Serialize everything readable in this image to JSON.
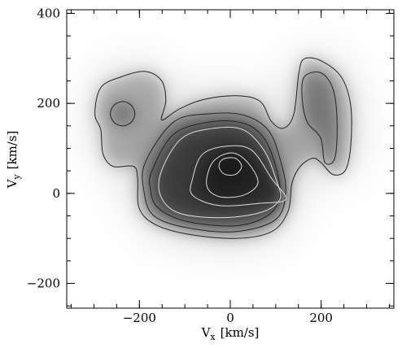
{
  "chart_data": {
    "type": "contour",
    "xlabel": {
      "main": "V",
      "sub": "x",
      "unit": "[km/s]"
    },
    "ylabel": {
      "main": "V",
      "sub": "y",
      "unit": "[km/s]"
    },
    "xlim": [
      -360,
      360
    ],
    "ylim": [
      -255,
      408
    ],
    "xticks": [
      {
        "value": -200,
        "label": "−200"
      },
      0,
      200
    ],
    "yticks": [
      {
        "value": -200,
        "label": "−200"
      },
      0,
      200,
      400
    ],
    "minor_step": 50,
    "contours": [
      {
        "color": "#222222",
        "x": [
          -285,
          -240,
          -187,
          -151,
          -142,
          -151,
          -115,
          -61,
          11,
          65,
          91,
          118,
          140,
          151,
          163,
          199,
          244,
          265,
          265,
          253,
          226,
          199,
          181,
          154,
          136,
          127,
          91,
          11,
          -97,
          -169,
          -201,
          -204,
          -213,
          -258,
          -280,
          -285,
          -298
        ],
        "y": [
          235,
          259,
          271,
          250,
          205,
          163,
          186,
          208,
          217,
          205,
          159,
          145,
          177,
          268,
          299,
          295,
          259,
          195,
          105,
          51,
          42,
          69,
          78,
          60,
          24,
          -40,
          -85,
          -100,
          -90,
          -67,
          -31,
          33,
          60,
          60,
          87,
          141,
          177
        ]
      },
      {
        "color": "#222222",
        "x": [
          -237,
          -218,
          -210,
          -218,
          -237,
          -256,
          -264,
          -256
        ],
        "y": [
          204,
          196,
          177,
          158,
          150,
          158,
          177,
          196
        ]
      },
      {
        "color": "#222222",
        "x": [
          163,
          199,
          226,
          235,
          230,
          208,
          199,
          169,
          158
        ],
        "y": [
          259,
          268,
          232,
          159,
          78,
          69,
          123,
          159,
          214
        ]
      },
      {
        "color": "#222222",
        "x": [
          -187,
          -124,
          -43,
          29,
          83,
          109,
          122,
          100,
          11,
          -97,
          -169,
          -190
        ],
        "y": [
          69,
          159,
          177,
          174,
          141,
          78,
          5,
          -58,
          -85,
          -76,
          -49,
          5
        ]
      },
      {
        "color": "#222222",
        "x": [
          -172,
          -124,
          -43,
          29,
          74,
          100,
          109,
          83,
          11,
          -97,
          -160,
          -176
        ],
        "y": [
          51,
          132,
          159,
          156,
          123,
          60,
          -4,
          -49,
          -72,
          -62,
          -31,
          11
        ]
      },
      {
        "color": "#dddddd",
        "x": [
          -151,
          -106,
          -34,
          29,
          74,
          100,
          109,
          65,
          -25,
          -115,
          -154
        ],
        "y": [
          51,
          123,
          145,
          141,
          96,
          33,
          -13,
          -43,
          -54,
          -43,
          -4
        ]
      },
      {
        "color": "#dddddd",
        "x": [
          -83,
          -61,
          -7,
          47,
          91,
          122,
          65,
          -25,
          -83
        ],
        "y": [
          33,
          87,
          105,
          96,
          33,
          -13,
          -22,
          -27,
          -4
        ]
      },
      {
        "color": "#dddddd",
        "x": [
          -52,
          -39,
          2,
          38,
          61,
          29,
          -25
        ],
        "y": [
          18,
          69,
          90,
          69,
          24,
          -4,
          -7
        ]
      },
      {
        "color": "#dddddd",
        "x": [
          -25,
          -16,
          11,
          25,
          11,
          -13
        ],
        "y": [
          60,
          76,
          78,
          60,
          42,
          43
        ]
      }
    ]
  }
}
